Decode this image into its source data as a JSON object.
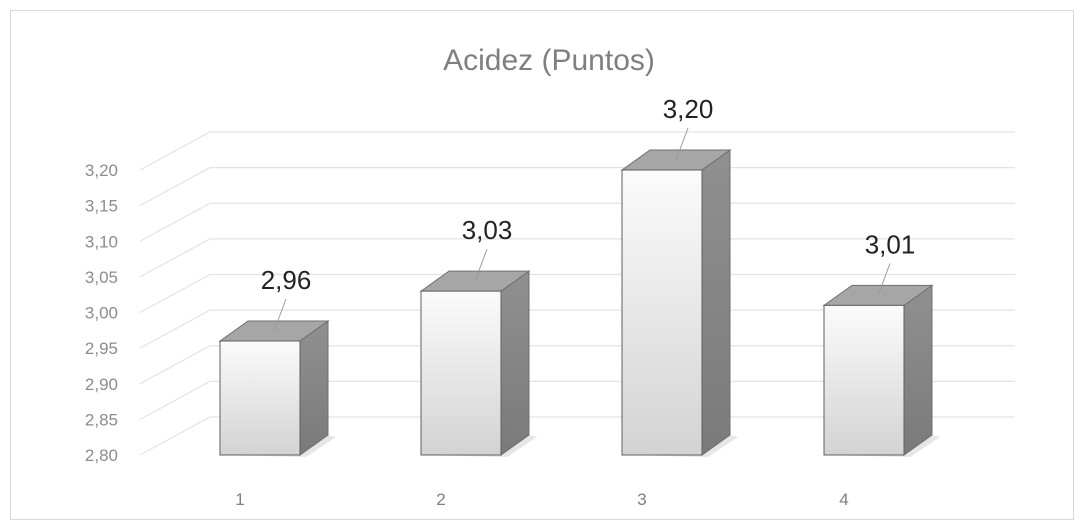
{
  "chart_data": {
    "type": "bar",
    "title": "Acidez (Puntos)",
    "categories": [
      "1",
      "2",
      "3",
      "4"
    ],
    "values": [
      2.96,
      3.03,
      3.2,
      3.01
    ],
    "value_labels": [
      "2,96",
      "3,03",
      "3,20",
      "3,01"
    ],
    "y_ticks": [
      "2,80",
      "2,85",
      "2,90",
      "2,95",
      "3,00",
      "3,05",
      "3,10",
      "3,15",
      "3,20"
    ],
    "ylim": [
      2.8,
      3.2
    ],
    "grid": true,
    "legend": "none",
    "style": "3d-column"
  },
  "colors": {
    "bar_front_top": "#fbfbfb",
    "bar_front_bottom": "#d3d3d3",
    "bar_side": "#8a8a8a",
    "bar_top": "#a6a6a6",
    "grid": "#e3e3e3",
    "text": "#7f7f7f"
  }
}
